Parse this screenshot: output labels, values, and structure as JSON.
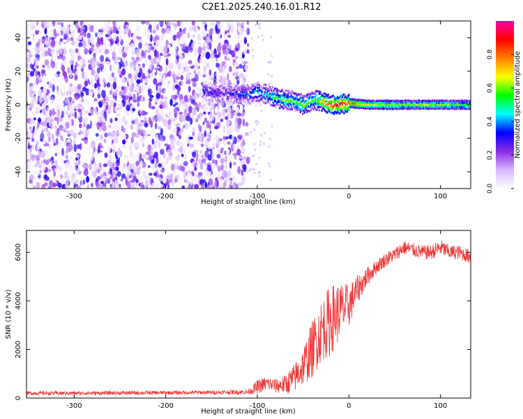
{
  "title": "C2E1.2025.240.16.01.R12",
  "chart_data": [
    {
      "type": "heatmap",
      "name": "spectrogram",
      "xlabel": "Height of straight line (km)",
      "ylabel": "Frequency (Hz)",
      "xlim": [
        -352,
        133
      ],
      "ylim": [
        -50,
        50
      ],
      "xticks": [
        "-300",
        "-200",
        "-100",
        "0",
        "100"
      ],
      "xtick_values": [
        -300,
        -200,
        -100,
        0,
        100
      ],
      "yticks": [
        "-40",
        "-20",
        "0",
        "20",
        "40"
      ],
      "ytick_values": [
        -40,
        -20,
        0,
        20,
        40
      ],
      "colorbar": {
        "label": "Normalized spectral amplitude",
        "range": [
          0,
          1
        ],
        "ticks": [
          "0.0",
          "0.2",
          "0.4",
          "0.6",
          "0.8"
        ],
        "tick_values": [
          0.0,
          0.2,
          0.4,
          0.6,
          0.8
        ],
        "colors": [
          "#ffffff",
          "#d8b8ff",
          "#8a2be2",
          "#0000ff",
          "#00ffff",
          "#00ff00",
          "#ffff00",
          "#ff8000",
          "#ff0000",
          "#ff00aa"
        ]
      },
      "noise_region_x": [
        -352,
        -110
      ],
      "ridge": {
        "x": [
          -160,
          -140,
          -110,
          -100,
          -90,
          -80,
          -70,
          -60,
          -50,
          -40,
          -30,
          -20,
          -10,
          0,
          20,
          50,
          100,
          133
        ],
        "y": [
          8,
          7,
          6,
          8,
          6,
          4,
          3,
          2,
          0,
          3,
          2,
          0,
          0,
          1,
          0,
          0,
          0,
          0
        ],
        "amplitude": [
          0.3,
          0.25,
          0.35,
          0.4,
          0.45,
          0.5,
          0.55,
          0.5,
          0.6,
          0.55,
          0.7,
          0.85,
          0.9,
          0.8,
          0.65,
          0.6,
          0.6,
          0.55
        ]
      },
      "grid": false
    },
    {
      "type": "line",
      "name": "snr",
      "xlabel": "Height of straight line (km)",
      "ylabel": "SNR (10 * v/v)",
      "xlim": [
        -352,
        133
      ],
      "ylim": [
        0,
        6900
      ],
      "xticks": [
        "-300",
        "-200",
        "-100",
        "0",
        "100"
      ],
      "xtick_values": [
        -300,
        -200,
        -100,
        0,
        100
      ],
      "yticks": [
        "0",
        "2000",
        "4000",
        "6000"
      ],
      "ytick_values": [
        0,
        2000,
        4000,
        6000
      ],
      "color": "#ee3333",
      "x": [
        -352,
        -300,
        -250,
        -200,
        -150,
        -110,
        -100,
        -90,
        -80,
        -70,
        -60,
        -50,
        -40,
        -30,
        -20,
        -10,
        0,
        10,
        20,
        30,
        40,
        50,
        60,
        70,
        80,
        90,
        100,
        110,
        120,
        133
      ],
      "y": [
        200,
        200,
        210,
        220,
        230,
        250,
        450,
        600,
        500,
        550,
        800,
        1300,
        2000,
        2800,
        3200,
        3600,
        3800,
        4500,
        5000,
        5400,
        5700,
        5900,
        6200,
        6100,
        6000,
        6000,
        6200,
        6000,
        6000,
        5800
      ],
      "noise_amplitude": [
        80,
        80,
        80,
        80,
        80,
        100,
        300,
        300,
        300,
        400,
        600,
        800,
        1200,
        1300,
        1500,
        1200,
        900,
        600,
        400,
        300,
        300,
        300,
        300,
        300,
        300,
        300,
        350,
        300,
        300,
        300
      ],
      "grid": false
    }
  ]
}
